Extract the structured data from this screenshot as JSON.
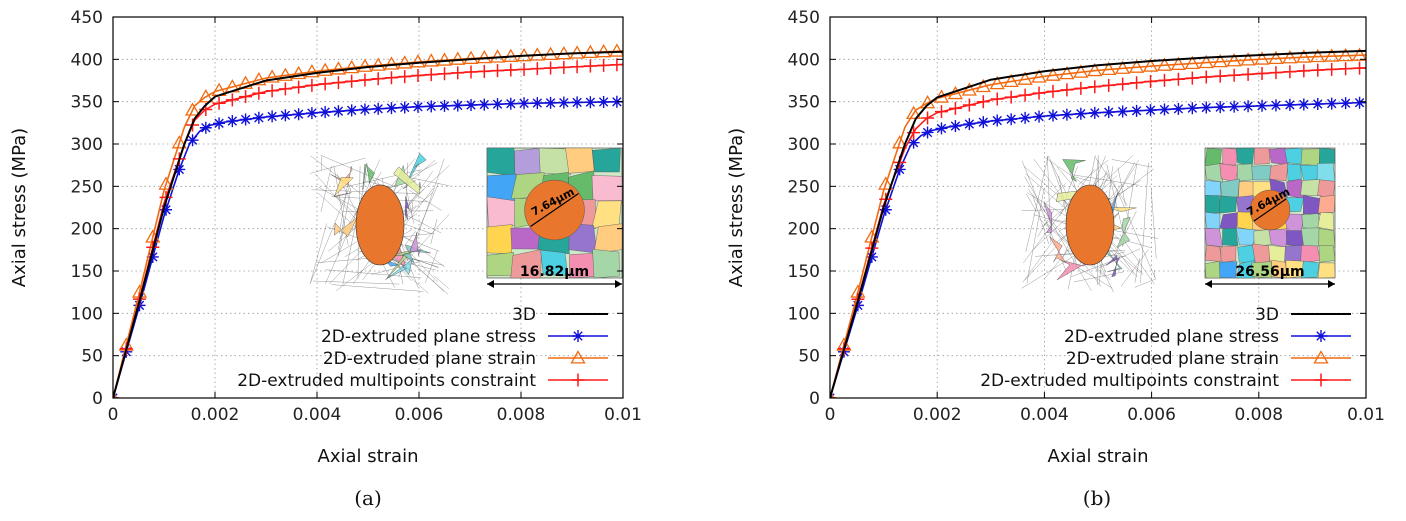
{
  "chart_data": [
    {
      "type": "line",
      "caption": "(a)",
      "xlabel": "Axial strain",
      "ylabel": "Axial stress (MPa)",
      "xlim": [
        0,
        0.01
      ],
      "ylim": [
        0,
        450
      ],
      "xticks": [
        "0",
        "0.002",
        "0.004",
        "0.006",
        "0.008",
        "0.01"
      ],
      "yticks": [
        "0",
        "50",
        "100",
        "150",
        "200",
        "250",
        "300",
        "350",
        "400",
        "450"
      ],
      "grid": true,
      "legend_position": "bottom-right",
      "inset": {
        "scale_label": "16.82μm",
        "grain_label": "7.64μm"
      },
      "series": [
        {
          "name": "3D",
          "color": "#000000",
          "marker": "none",
          "x": [
            0,
            0.0005,
            0.001,
            0.0014,
            0.0016,
            0.0018,
            0.002,
            0.003,
            0.004,
            0.005,
            0.006,
            0.007,
            0.008,
            0.009,
            0.01
          ],
          "y": [
            0,
            110,
            225,
            300,
            330,
            345,
            356,
            375,
            384,
            391,
            396,
            400,
            404,
            407,
            409
          ]
        },
        {
          "name": "2D-extruded plane stress",
          "color": "#1010d8",
          "marker": "star",
          "x": [
            0,
            0.0005,
            0.001,
            0.0013,
            0.0015,
            0.0017,
            0.0019,
            0.0022,
            0.003,
            0.004,
            0.005,
            0.006,
            0.007,
            0.008,
            0.009,
            0.01
          ],
          "y": [
            0,
            105,
            215,
            270,
            300,
            315,
            322,
            326,
            332,
            337,
            341,
            344,
            346,
            348,
            349,
            350
          ]
        },
        {
          "name": "2D-extruded plane strain",
          "color": "#f26a10",
          "marker": "triangle",
          "x": [
            0,
            0.0005,
            0.001,
            0.0014,
            0.0016,
            0.0018,
            0.002,
            0.003,
            0.004,
            0.005,
            0.006,
            0.007,
            0.008,
            0.009,
            0.01
          ],
          "y": [
            0,
            120,
            245,
            320,
            345,
            355,
            362,
            378,
            386,
            392,
            397,
            401,
            404,
            407,
            410
          ]
        },
        {
          "name": "2D-extruded multipoints constraint",
          "color": "#ff1a1a",
          "marker": "plus",
          "x": [
            0,
            0.0005,
            0.001,
            0.0014,
            0.0016,
            0.0018,
            0.002,
            0.003,
            0.004,
            0.005,
            0.006,
            0.007,
            0.008,
            0.009,
            0.01
          ],
          "y": [
            0,
            112,
            230,
            300,
            328,
            340,
            347,
            362,
            370,
            376,
            381,
            385,
            388,
            391,
            394
          ]
        }
      ]
    },
    {
      "type": "line",
      "caption": "(b)",
      "xlabel": "Axial strain",
      "ylabel": "Axial stress (MPa)",
      "xlim": [
        0,
        0.01
      ],
      "ylim": [
        0,
        450
      ],
      "xticks": [
        "0",
        "0.002",
        "0.004",
        "0.006",
        "0.008",
        "0.01"
      ],
      "yticks": [
        "0",
        "50",
        "100",
        "150",
        "200",
        "250",
        "300",
        "350",
        "400",
        "450"
      ],
      "grid": true,
      "legend_position": "bottom-right",
      "inset": {
        "scale_label": "26.56μm",
        "grain_label": "7.64μm"
      },
      "series": [
        {
          "name": "3D",
          "color": "#000000",
          "marker": "none",
          "x": [
            0,
            0.0005,
            0.001,
            0.0014,
            0.0016,
            0.0018,
            0.002,
            0.003,
            0.004,
            0.005,
            0.006,
            0.007,
            0.008,
            0.009,
            0.01
          ],
          "y": [
            0,
            110,
            225,
            300,
            330,
            345,
            355,
            376,
            386,
            393,
            398,
            402,
            405,
            408,
            410
          ]
        },
        {
          "name": "2D-extruded plane stress",
          "color": "#1010d8",
          "marker": "star",
          "x": [
            0,
            0.0005,
            0.001,
            0.0013,
            0.0015,
            0.0017,
            0.0019,
            0.0022,
            0.003,
            0.004,
            0.005,
            0.006,
            0.007,
            0.008,
            0.009,
            0.01
          ],
          "y": [
            0,
            105,
            215,
            270,
            298,
            310,
            316,
            320,
            327,
            333,
            337,
            340,
            343,
            345,
            347,
            349
          ]
        },
        {
          "name": "2D-extruded plane strain",
          "color": "#f26a10",
          "marker": "triangle",
          "x": [
            0,
            0.0005,
            0.001,
            0.0014,
            0.0016,
            0.0018,
            0.002,
            0.003,
            0.004,
            0.005,
            0.006,
            0.007,
            0.008,
            0.009,
            0.01
          ],
          "y": [
            0,
            120,
            245,
            320,
            340,
            348,
            354,
            370,
            380,
            387,
            392,
            396,
            400,
            403,
            405
          ]
        },
        {
          "name": "2D-extruded multipoints constraint",
          "color": "#ff1a1a",
          "marker": "plus",
          "x": [
            0,
            0.0005,
            0.001,
            0.0014,
            0.0016,
            0.0018,
            0.002,
            0.003,
            0.004,
            0.005,
            0.006,
            0.007,
            0.008,
            0.009,
            0.01
          ],
          "y": [
            0,
            112,
            228,
            295,
            318,
            330,
            337,
            352,
            361,
            368,
            374,
            379,
            383,
            387,
            390
          ]
        }
      ]
    }
  ]
}
